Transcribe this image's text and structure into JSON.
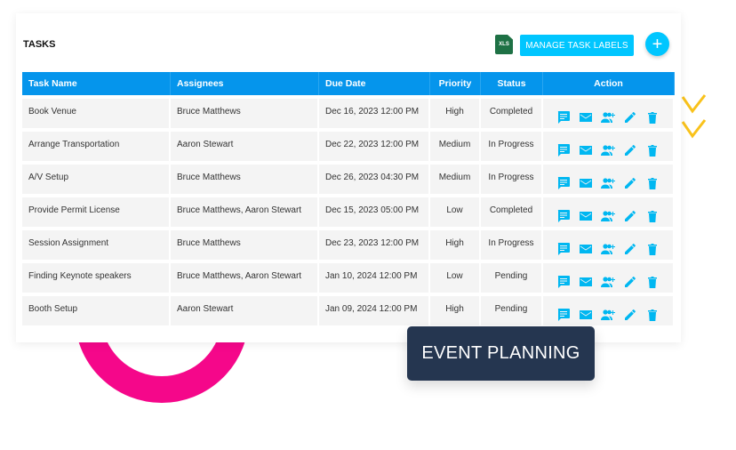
{
  "tasks": {
    "title": "TASKS",
    "xls_label": "XLS",
    "manage_labels_button": "MANAGE TASK LABELS",
    "add_button": "+",
    "columns": [
      "Task Name",
      "Assignees",
      "Due Date",
      "Priority",
      "Status",
      "Action"
    ],
    "rows": [
      {
        "name": "Book Venue",
        "assignees": "Bruce Matthews",
        "due": "Dec 16, 2023 12:00 PM",
        "priority": "High",
        "status": "Completed"
      },
      {
        "name": "Arrange Transportation",
        "assignees": "Aaron Stewart",
        "due": "Dec 22, 2023 12:00 PM",
        "priority": "Medium",
        "status": "In Progress"
      },
      {
        "name": "A/V Setup",
        "assignees": "Bruce Matthews",
        "due": "Dec 26, 2023 04:30 PM",
        "priority": "Medium",
        "status": "In Progress"
      },
      {
        "name": "Provide Permit License",
        "assignees": "Bruce Matthews, Aaron Stewart",
        "due": "Dec 15, 2023 05:00 PM",
        "priority": "Low",
        "status": "Completed"
      },
      {
        "name": "Session Assignment",
        "assignees": "Bruce Matthews",
        "due": "Dec 23, 2023 12:00 PM",
        "priority": "High",
        "status": "In Progress"
      },
      {
        "name": "Finding Keynote speakers",
        "assignees": "Bruce Matthews, Aaron Stewart",
        "due": "Jan 10, 2024 12:00 PM",
        "priority": "Low",
        "status": "Pending"
      },
      {
        "name": "Booth Setup",
        "assignees": "Aaron Stewart",
        "due": "Jan 09, 2024 12:00 PM",
        "priority": "High",
        "status": "Pending"
      }
    ],
    "action_icons": [
      "comment-icon",
      "email-icon",
      "add-assignee-icon",
      "edit-icon",
      "delete-icon"
    ]
  },
  "badge": {
    "label": "EVENT PLANNING"
  },
  "colors": {
    "accent": "#00c6ff",
    "header": "#0595ec",
    "ring": "#f5078a",
    "badge": "#253650",
    "check": "#f9c21b"
  }
}
